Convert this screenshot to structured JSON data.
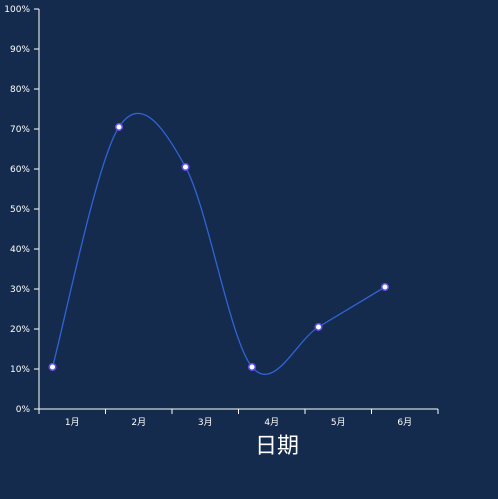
{
  "chart_data": {
    "type": "line",
    "categories": [
      "1月",
      "2月",
      "3月",
      "4月",
      "5月",
      "6月"
    ],
    "series": [
      {
        "values": [
          10.5,
          70.5,
          60.5,
          10.5,
          20.5,
          30.5
        ]
      }
    ],
    "xlabel": "日期",
    "ylabel": "",
    "ylim": [
      0,
      100
    ],
    "y_unit": "%",
    "y_ticks": [
      "0%",
      "10%",
      "20%",
      "30%",
      "40%",
      "50%",
      "60%",
      "70%",
      "80%",
      "90%",
      "100%"
    ],
    "curve": "smooth",
    "grid": false,
    "colors": {
      "background": "#152b4d",
      "line": "#2f63d6",
      "point_fill": "#ffffff",
      "point_stroke": "#5a4ee6",
      "axis": "#ffffff"
    }
  }
}
